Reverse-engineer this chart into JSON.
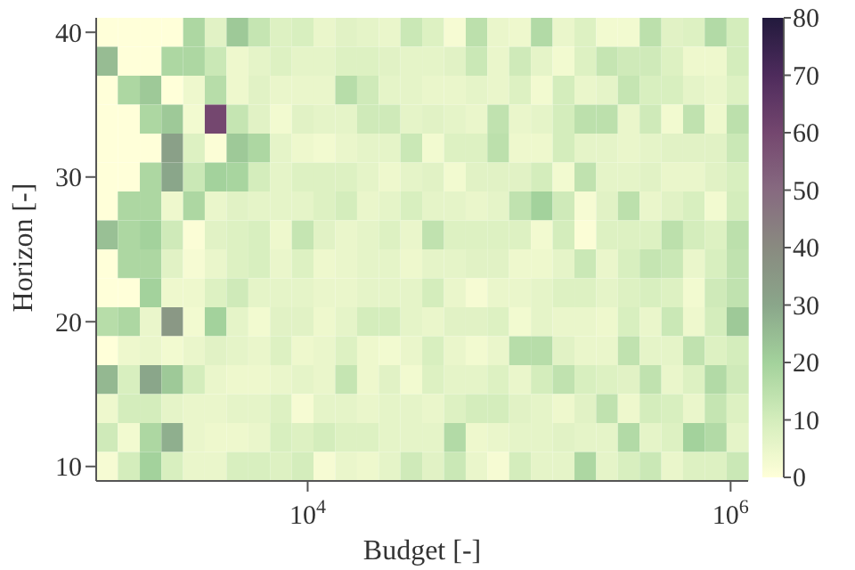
{
  "chart_data": {
    "type": "heatmap",
    "xlabel": "Budget [-]",
    "ylabel": "Horizon [-]",
    "log": "x",
    "xlim": [
      1000,
      1210000
    ],
    "xticks": [
      {
        "value": 10000,
        "label": "10$^{4}$"
      },
      {
        "value": 1000000,
        "label": "10$^{6}$"
      }
    ],
    "ylim": [
      9,
      41
    ],
    "yticks": [
      10,
      20,
      30,
      40
    ],
    "clim": [
      0,
      80
    ],
    "cticks": [
      0,
      10,
      20,
      30,
      40,
      50,
      60,
      70,
      80
    ],
    "x": [
      1120,
      1430,
      1810,
      2290,
      2900,
      3670,
      4660,
      5900,
      7480,
      9460,
      12000,
      15200,
      19300,
      24400,
      30900,
      39200,
      49700,
      62900,
      79600,
      101000,
      128000,
      162000,
      206000,
      260000,
      330000,
      418000,
      530000,
      670000,
      849000,
      1080000
    ],
    "cells": [
      [
        0,
        0,
        0,
        0,
        18,
        7,
        22,
        13,
        8,
        9,
        5,
        7,
        6,
        5,
        12,
        8,
        2,
        15,
        5,
        4,
        17,
        5,
        8,
        3,
        3,
        15,
        7,
        8,
        17,
        10
      ],
      [
        25,
        0,
        0,
        18,
        18,
        12,
        4,
        6,
        8,
        6,
        6,
        8,
        8,
        7,
        6,
        6,
        7,
        12,
        5,
        11,
        6,
        3,
        8,
        13,
        11,
        11,
        8,
        4,
        4,
        10
      ],
      [
        0,
        18,
        22,
        0,
        4,
        16,
        4,
        7,
        5,
        5,
        5,
        16,
        11,
        6,
        6,
        5,
        5,
        6,
        5,
        8,
        3,
        10,
        5,
        6,
        13,
        9,
        9,
        6,
        5,
        8
      ],
      [
        0,
        0,
        18,
        22,
        3,
        60,
        13,
        7,
        3,
        7,
        6,
        6,
        11,
        11,
        6,
        7,
        6,
        5,
        14,
        5,
        6,
        10,
        15,
        15,
        5,
        11,
        3,
        14,
        4,
        15
      ],
      [
        0,
        0,
        0,
        32,
        8,
        1,
        22,
        18,
        6,
        4,
        3,
        5,
        6,
        6,
        12,
        3,
        8,
        8,
        15,
        4,
        4,
        10,
        6,
        6,
        5,
        6,
        7,
        7,
        7,
        12
      ],
      [
        0,
        0,
        18,
        30,
        12,
        20,
        19,
        10,
        6,
        8,
        8,
        8,
        6,
        4,
        6,
        7,
        3,
        7,
        7,
        7,
        10,
        3,
        14,
        6,
        6,
        7,
        5,
        5,
        7,
        9
      ],
      [
        0,
        18,
        18,
        4,
        18,
        5,
        7,
        6,
        6,
        6,
        8,
        10,
        5,
        6,
        9,
        6,
        6,
        5,
        6,
        14,
        20,
        11,
        2,
        7,
        15,
        5,
        7,
        9,
        3,
        10
      ],
      [
        24,
        18,
        20,
        11,
        1,
        7,
        8,
        9,
        4,
        13,
        7,
        5,
        6,
        8,
        5,
        14,
        8,
        8,
        8,
        8,
        3,
        10,
        1,
        8,
        8,
        8,
        15,
        10,
        8,
        15
      ],
      [
        0,
        18,
        18,
        7,
        2,
        5,
        8,
        9,
        5,
        8,
        4,
        5,
        6,
        6,
        4,
        6,
        6,
        7,
        7,
        4,
        4,
        6,
        12,
        5,
        9,
        13,
        12,
        5,
        9,
        14
      ],
      [
        0,
        0,
        20,
        4,
        4,
        8,
        11,
        6,
        6,
        6,
        5,
        5,
        6,
        6,
        6,
        10,
        5,
        2,
        5,
        5,
        6,
        8,
        8,
        6,
        8,
        9,
        8,
        3,
        11,
        14
      ],
      [
        16,
        18,
        5,
        35,
        3,
        20,
        6,
        3,
        7,
        7,
        4,
        6,
        10,
        10,
        6,
        5,
        7,
        7,
        8,
        3,
        6,
        5,
        5,
        4,
        9,
        5,
        12,
        4,
        10,
        22
      ],
      [
        0,
        4,
        5,
        3,
        5,
        7,
        6,
        5,
        8,
        4,
        5,
        8,
        4,
        3,
        5,
        9,
        5,
        3,
        5,
        16,
        16,
        7,
        5,
        5,
        14,
        6,
        6,
        14,
        8,
        10
      ],
      [
        26,
        9,
        30,
        22,
        10,
        5,
        4,
        4,
        5,
        6,
        5,
        13,
        4,
        7,
        3,
        8,
        6,
        6,
        8,
        5,
        10,
        14,
        9,
        8,
        7,
        14,
        5,
        8,
        17,
        11
      ],
      [
        4,
        10,
        10,
        6,
        5,
        5,
        6,
        6,
        8,
        2,
        6,
        6,
        5,
        6,
        6,
        5,
        8,
        10,
        10,
        7,
        6,
        4,
        7,
        14,
        4,
        10,
        9,
        5,
        13,
        8
      ],
      [
        11,
        3,
        18,
        28,
        5,
        4,
        4,
        5,
        9,
        8,
        10,
        8,
        8,
        6,
        6,
        6,
        17,
        4,
        5,
        6,
        6,
        7,
        6,
        6,
        17,
        6,
        8,
        20,
        17,
        6
      ],
      [
        2,
        10,
        20,
        9,
        5,
        5,
        9,
        9,
        8,
        10,
        2,
        5,
        4,
        6,
        11,
        7,
        12,
        5,
        2,
        10,
        6,
        6,
        18,
        6,
        9,
        12,
        5,
        8,
        8,
        12
      ]
    ]
  }
}
